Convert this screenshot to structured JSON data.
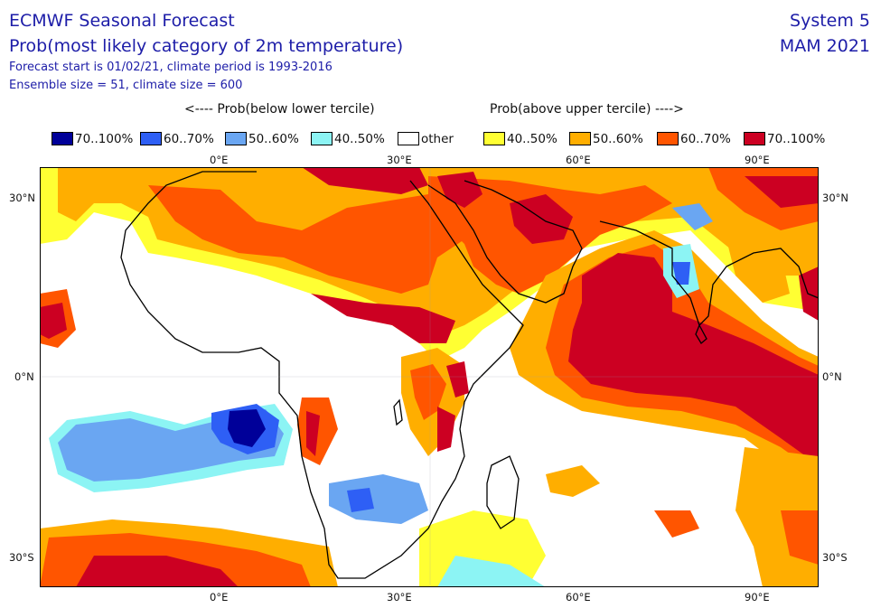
{
  "header": {
    "title": "ECMWF Seasonal Forecast",
    "subtitle": "Prob(most likely category of 2m temperature)",
    "info_line1": "Forecast start is 01/02/21, climate period is 1993-2016",
    "info_line2": "Ensemble size = 51, climate size = 600",
    "system": "System 5",
    "period": "MAM 2021"
  },
  "captions": {
    "below": "<---- Prob(below lower tercile)",
    "above": "Prob(above upper tercile) ---->"
  },
  "legend": [
    {
      "label": "70..100%",
      "color": "#000099"
    },
    {
      "label": "60..70%",
      "color": "#2e5ff5"
    },
    {
      "label": "50..60%",
      "color": "#6aa6f2"
    },
    {
      "label": "40..50%",
      "color": "#8cf4f4"
    },
    {
      "label": "other",
      "color": "#ffffff"
    },
    {
      "label": "40..50%",
      "color": "#ffff33"
    },
    {
      "label": "50..60%",
      "color": "#ffae00"
    },
    {
      "label": "60..70%",
      "color": "#ff5500"
    },
    {
      "label": "70..100%",
      "color": "#cc0022"
    }
  ],
  "axes": {
    "lon_ticks": [
      "0°E",
      "30°E",
      "60°E",
      "90°E"
    ],
    "lat_ticks": [
      "30°N",
      "0°N",
      "30°S"
    ]
  }
}
